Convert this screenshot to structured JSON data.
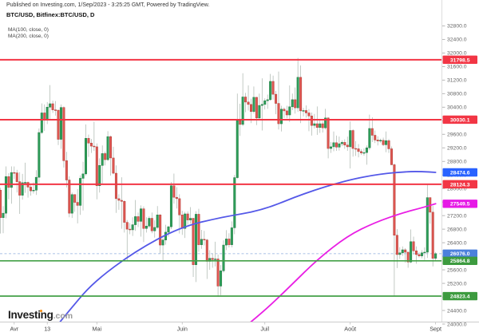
{
  "header": {
    "published_line": "Published on Investing.com, 1/Sep/2023 - 3:25:25 GMT, Powered by TradingView.",
    "symbol_line": "BTC/USD, Bitfinex:BTC/USD, D",
    "indicators": [
      "MA(100, close, 0)",
      "MA(200, close, 0)"
    ]
  },
  "watermark": {
    "brand": "Investing",
    "suffix": ".com"
  },
  "colors": {
    "candle_up": "#2e9e59",
    "candle_up_border": "#217a43",
    "candle_down": "#de5650",
    "candle_down_border": "#b2423d",
    "wick": "#a9b4ac",
    "resistance": "#f23645",
    "support": "#43a047",
    "ma100": "#5458e8",
    "ma200": "#e91ee4",
    "last_price_line": "#8faedc",
    "badge_red": "#f23645",
    "badge_green": "#3d9b3f",
    "badge_blue": "#2962ff",
    "badge_lightblue": "#4c80dc",
    "badge_magenta": "#e619e6",
    "axis_text": "#666",
    "date_text": "#444",
    "axis_border": "#cccccc"
  },
  "chart_data": {
    "type": "candlestick",
    "title": "BTC/USD, Bitfinex:BTC/USD, D",
    "symbol": "BTC/USD",
    "exchange": "Bitfinex",
    "interval": "D",
    "start_date": "2023-03-27",
    "y_axis": {
      "tick_min": 24000,
      "tick_max": 32800,
      "tick_step": 400,
      "price_min": 23930,
      "price_max": 33000
    },
    "x_axis": {
      "labels": [
        {
          "text": "Avr",
          "i": 5
        },
        {
          "text": "13",
          "i": 17
        },
        {
          "text": "Mai",
          "i": 35
        },
        {
          "text": "Juin",
          "i": 66
        },
        {
          "text": "Juil",
          "i": 96
        },
        {
          "text": "Août",
          "i": 127
        },
        {
          "text": "Sept",
          "i": 158
        }
      ]
    },
    "horizontal_lines": [
      {
        "price": 31798.5,
        "label": "31798.5",
        "kind": "resistance"
      },
      {
        "price": 30030.1,
        "label": "30030.1",
        "kind": "resistance"
      },
      {
        "price": 28124.3,
        "label": "28124.3",
        "kind": "resistance"
      },
      {
        "price": 25864.8,
        "label": "25864.8",
        "kind": "support"
      },
      {
        "price": 24823.4,
        "label": "24823.4",
        "kind": "support"
      }
    ],
    "last_price": {
      "value": 26076.0,
      "label": "26076.0"
    },
    "moving_averages": [
      {
        "name": "MA(100, close, 0)",
        "value": 28474.6,
        "label": "28474.6",
        "color_key": "ma100",
        "badge_key": "badge_blue",
        "points": [
          [
            21,
            24000
          ],
          [
            26,
            24500
          ],
          [
            34,
            25250
          ],
          [
            49,
            26150
          ],
          [
            65,
            26850
          ],
          [
            80,
            27150
          ],
          [
            95,
            27350
          ],
          [
            110,
            27850
          ],
          [
            126,
            28250
          ],
          [
            138,
            28430
          ],
          [
            148,
            28500
          ],
          [
            153,
            28500
          ],
          [
            158,
            28474.6
          ]
        ]
      },
      {
        "name": "MA(200, close, 0)",
        "value": 27549.5,
        "label": "27549.5",
        "color_key": "ma200",
        "badge_key": "badge_magenta",
        "points": [
          [
            90,
            24000
          ],
          [
            96,
            24400
          ],
          [
            105,
            25100
          ],
          [
            115,
            25900
          ],
          [
            126,
            26600
          ],
          [
            136,
            27000
          ],
          [
            146,
            27280
          ],
          [
            153,
            27430
          ],
          [
            158,
            27549.5
          ]
        ]
      }
    ],
    "candles": [
      [
        27950,
        28020,
        26670,
        27140
      ],
      [
        27140,
        27480,
        26680,
        27270
      ],
      [
        27270,
        28650,
        27120,
        28350
      ],
      [
        28350,
        28450,
        27680,
        28030
      ],
      [
        28030,
        28650,
        27550,
        28470
      ],
      [
        28470,
        28650,
        28280,
        28460
      ],
      [
        28460,
        28550,
        27880,
        28200
      ],
      [
        28200,
        28480,
        27250,
        27800
      ],
      [
        27800,
        28430,
        27670,
        28170
      ],
      [
        28170,
        28760,
        27870,
        28180
      ],
      [
        28180,
        28200,
        27730,
        28040
      ],
      [
        28040,
        28120,
        27790,
        27930
      ],
      [
        27930,
        28180,
        27850,
        27950
      ],
      [
        27950,
        28540,
        27810,
        28330
      ],
      [
        28330,
        29770,
        28170,
        29650
      ],
      [
        29650,
        30510,
        29610,
        30230
      ],
      [
        30230,
        30480,
        29700,
        30020
      ],
      [
        30020,
        30550,
        29900,
        30400
      ],
      [
        30400,
        31050,
        30020,
        30500
      ],
      [
        30500,
        30590,
        30230,
        30320
      ],
      [
        30320,
        30580,
        30150,
        30310
      ],
      [
        30310,
        30320,
        29280,
        29450
      ],
      [
        29450,
        30480,
        29170,
        30390
      ],
      [
        30390,
        30420,
        28620,
        28820
      ],
      [
        28820,
        29080,
        28030,
        28250
      ],
      [
        28250,
        28360,
        27150,
        27270
      ],
      [
        27270,
        27880,
        27130,
        27820
      ],
      [
        27820,
        27830,
        27310,
        27590
      ],
      [
        27590,
        27980,
        26970,
        27500
      ],
      [
        27500,
        28390,
        27220,
        28300
      ],
      [
        28300,
        28790,
        27350,
        28430
      ],
      [
        28430,
        29890,
        28380,
        29480
      ],
      [
        29480,
        29590,
        28930,
        29340
      ],
      [
        29340,
        29460,
        29050,
        29250
      ],
      [
        29250,
        29970,
        29110,
        29230
      ],
      [
        29230,
        29330,
        27680,
        28080
      ],
      [
        28080,
        28890,
        27880,
        28680
      ],
      [
        28680,
        29270,
        28150,
        29030
      ],
      [
        29030,
        29090,
        28680,
        28850
      ],
      [
        28850,
        29690,
        28810,
        29530
      ],
      [
        29530,
        29560,
        28380,
        28900
      ],
      [
        28900,
        29230,
        28420,
        28450
      ],
      [
        28450,
        28680,
        27280,
        27700
      ],
      [
        27700,
        27830,
        27370,
        27650
      ],
      [
        27650,
        28330,
        26810,
        27620
      ],
      [
        27620,
        27650,
        26700,
        27000
      ],
      [
        27000,
        27070,
        25880,
        26800
      ],
      [
        26800,
        26980,
        26650,
        26780
      ],
      [
        26780,
        27150,
        26600,
        26930
      ],
      [
        26930,
        27660,
        26750,
        27170
      ],
      [
        27170,
        27290,
        26860,
        27030
      ],
      [
        27030,
        27500,
        26580,
        27400
      ],
      [
        27400,
        27470,
        26420,
        26820
      ],
      [
        26820,
        27150,
        26700,
        26890
      ],
      [
        26890,
        27180,
        26830,
        27120
      ],
      [
        27120,
        27290,
        26680,
        26750
      ],
      [
        26750,
        27060,
        26550,
        26850
      ],
      [
        26850,
        27480,
        26810,
        27220
      ],
      [
        27220,
        27240,
        26080,
        26330
      ],
      [
        26330,
        26620,
        25880,
        26480
      ],
      [
        26480,
        26930,
        26340,
        26710
      ],
      [
        26710,
        26900,
        26580,
        26870
      ],
      [
        26870,
        28190,
        26800,
        28080
      ],
      [
        28080,
        28440,
        27550,
        27740
      ],
      [
        27740,
        28040,
        27410,
        27700
      ],
      [
        27700,
        27830,
        26670,
        27220
      ],
      [
        27220,
        27340,
        26630,
        26820
      ],
      [
        26820,
        27310,
        26540,
        27250
      ],
      [
        27250,
        27320,
        26930,
        27070
      ],
      [
        27070,
        27450,
        26960,
        27120
      ],
      [
        27120,
        27130,
        25390,
        25750
      ],
      [
        25750,
        27330,
        25240,
        27240
      ],
      [
        27240,
        27400,
        26130,
        26340
      ],
      [
        26340,
        26780,
        26220,
        26500
      ],
      [
        26500,
        26750,
        26320,
        26480
      ],
      [
        26480,
        26510,
        25330,
        25850
      ],
      [
        25850,
        26180,
        25600,
        25940
      ],
      [
        25940,
        26080,
        25660,
        25900
      ],
      [
        25900,
        26430,
        25700,
        25920
      ],
      [
        25920,
        26050,
        24800,
        25120
      ],
      [
        25120,
        25740,
        24850,
        25570
      ],
      [
        25570,
        26470,
        25520,
        26330
      ],
      [
        26330,
        26770,
        26180,
        26510
      ],
      [
        26510,
        26680,
        26260,
        26340
      ],
      [
        26340,
        27030,
        26260,
        26840
      ],
      [
        26840,
        28400,
        26650,
        28320
      ],
      [
        28320,
        30800,
        28290,
        30000
      ],
      [
        30000,
        30500,
        29550,
        29890
      ],
      [
        29890,
        31400,
        29840,
        30700
      ],
      [
        30700,
        30820,
        30250,
        30550
      ],
      [
        30550,
        31040,
        30300,
        30480
      ],
      [
        30480,
        30650,
        29930,
        30270
      ],
      [
        30270,
        31010,
        30210,
        30690
      ],
      [
        30690,
        30700,
        29870,
        30080
      ],
      [
        30080,
        30800,
        30050,
        30450
      ],
      [
        30450,
        31250,
        29710,
        30480
      ],
      [
        30480,
        30660,
        30330,
        30590
      ],
      [
        30590,
        30770,
        30350,
        30620
      ],
      [
        30620,
        31380,
        30590,
        31160
      ],
      [
        31160,
        31330,
        30620,
        30780
      ],
      [
        30780,
        30880,
        30190,
        30510
      ],
      [
        30510,
        31450,
        29740,
        29910
      ],
      [
        29910,
        30440,
        29680,
        30340
      ],
      [
        30340,
        30390,
        30080,
        30290
      ],
      [
        30290,
        30440,
        30070,
        30170
      ],
      [
        30170,
        31040,
        29960,
        30410
      ],
      [
        30410,
        30800,
        30310,
        30620
      ],
      [
        30620,
        30980,
        30210,
        30380
      ],
      [
        30380,
        31850,
        30260,
        31280
      ],
      [
        31280,
        31630,
        29930,
        30290
      ],
      [
        30290,
        30380,
        30130,
        30300
      ],
      [
        30300,
        30450,
        30090,
        30230
      ],
      [
        30230,
        30340,
        29690,
        30140
      ],
      [
        30140,
        30240,
        29560,
        29860
      ],
      [
        29860,
        30200,
        29770,
        29910
      ],
      [
        29910,
        30420,
        29580,
        29800
      ],
      [
        29800,
        30050,
        29640,
        29910
      ],
      [
        29910,
        29990,
        29650,
        29790
      ],
      [
        29790,
        30350,
        29740,
        30080
      ],
      [
        30080,
        30100,
        28890,
        29180
      ],
      [
        29180,
        29370,
        29050,
        29230
      ],
      [
        29230,
        29680,
        29100,
        29350
      ],
      [
        29350,
        29560,
        29110,
        29220
      ],
      [
        29220,
        29530,
        29120,
        29320
      ],
      [
        29320,
        29420,
        29250,
        29360
      ],
      [
        29360,
        29450,
        29170,
        29280
      ],
      [
        29280,
        29530,
        29110,
        29230
      ],
      [
        29230,
        29980,
        28590,
        29710
      ],
      [
        29710,
        29750,
        28940,
        29180
      ],
      [
        29180,
        29400,
        28960,
        29170
      ],
      [
        29170,
        29310,
        28920,
        29090
      ],
      [
        29090,
        29160,
        28990,
        29050
      ],
      [
        29050,
        29180,
        28970,
        29060
      ],
      [
        29060,
        29270,
        28700,
        29200
      ],
      [
        29200,
        30180,
        29130,
        29770
      ],
      [
        29770,
        30100,
        29370,
        29570
      ],
      [
        29570,
        29710,
        29340,
        29430
      ],
      [
        29430,
        29540,
        29270,
        29400
      ],
      [
        29400,
        29470,
        29350,
        29420
      ],
      [
        29420,
        29500,
        29250,
        29290
      ],
      [
        29290,
        29680,
        29070,
        29410
      ],
      [
        29410,
        29460,
        29050,
        29170
      ],
      [
        29170,
        29240,
        28690,
        28700
      ],
      [
        28700,
        28740,
        24830,
        26620
      ],
      [
        26620,
        26800,
        25650,
        26050
      ],
      [
        26050,
        26270,
        25920,
        26100
      ],
      [
        26100,
        26290,
        26010,
        26190
      ],
      [
        26190,
        26240,
        25810,
        26120
      ],
      [
        26120,
        26140,
        25660,
        25830
      ],
      [
        25830,
        26790,
        25800,
        26430
      ],
      [
        26430,
        26580,
        26050,
        26160
      ],
      [
        26160,
        26290,
        25780,
        26050
      ],
      [
        26050,
        26120,
        25960,
        26010
      ],
      [
        26010,
        26180,
        25940,
        26100
      ],
      [
        26100,
        26260,
        25890,
        26120
      ],
      [
        26120,
        28140,
        25950,
        27730
      ],
      [
        27730,
        27740,
        26960,
        27300
      ],
      [
        27300,
        27490,
        25700,
        25940
      ],
      [
        25940,
        26125,
        25850,
        26076
      ]
    ]
  }
}
